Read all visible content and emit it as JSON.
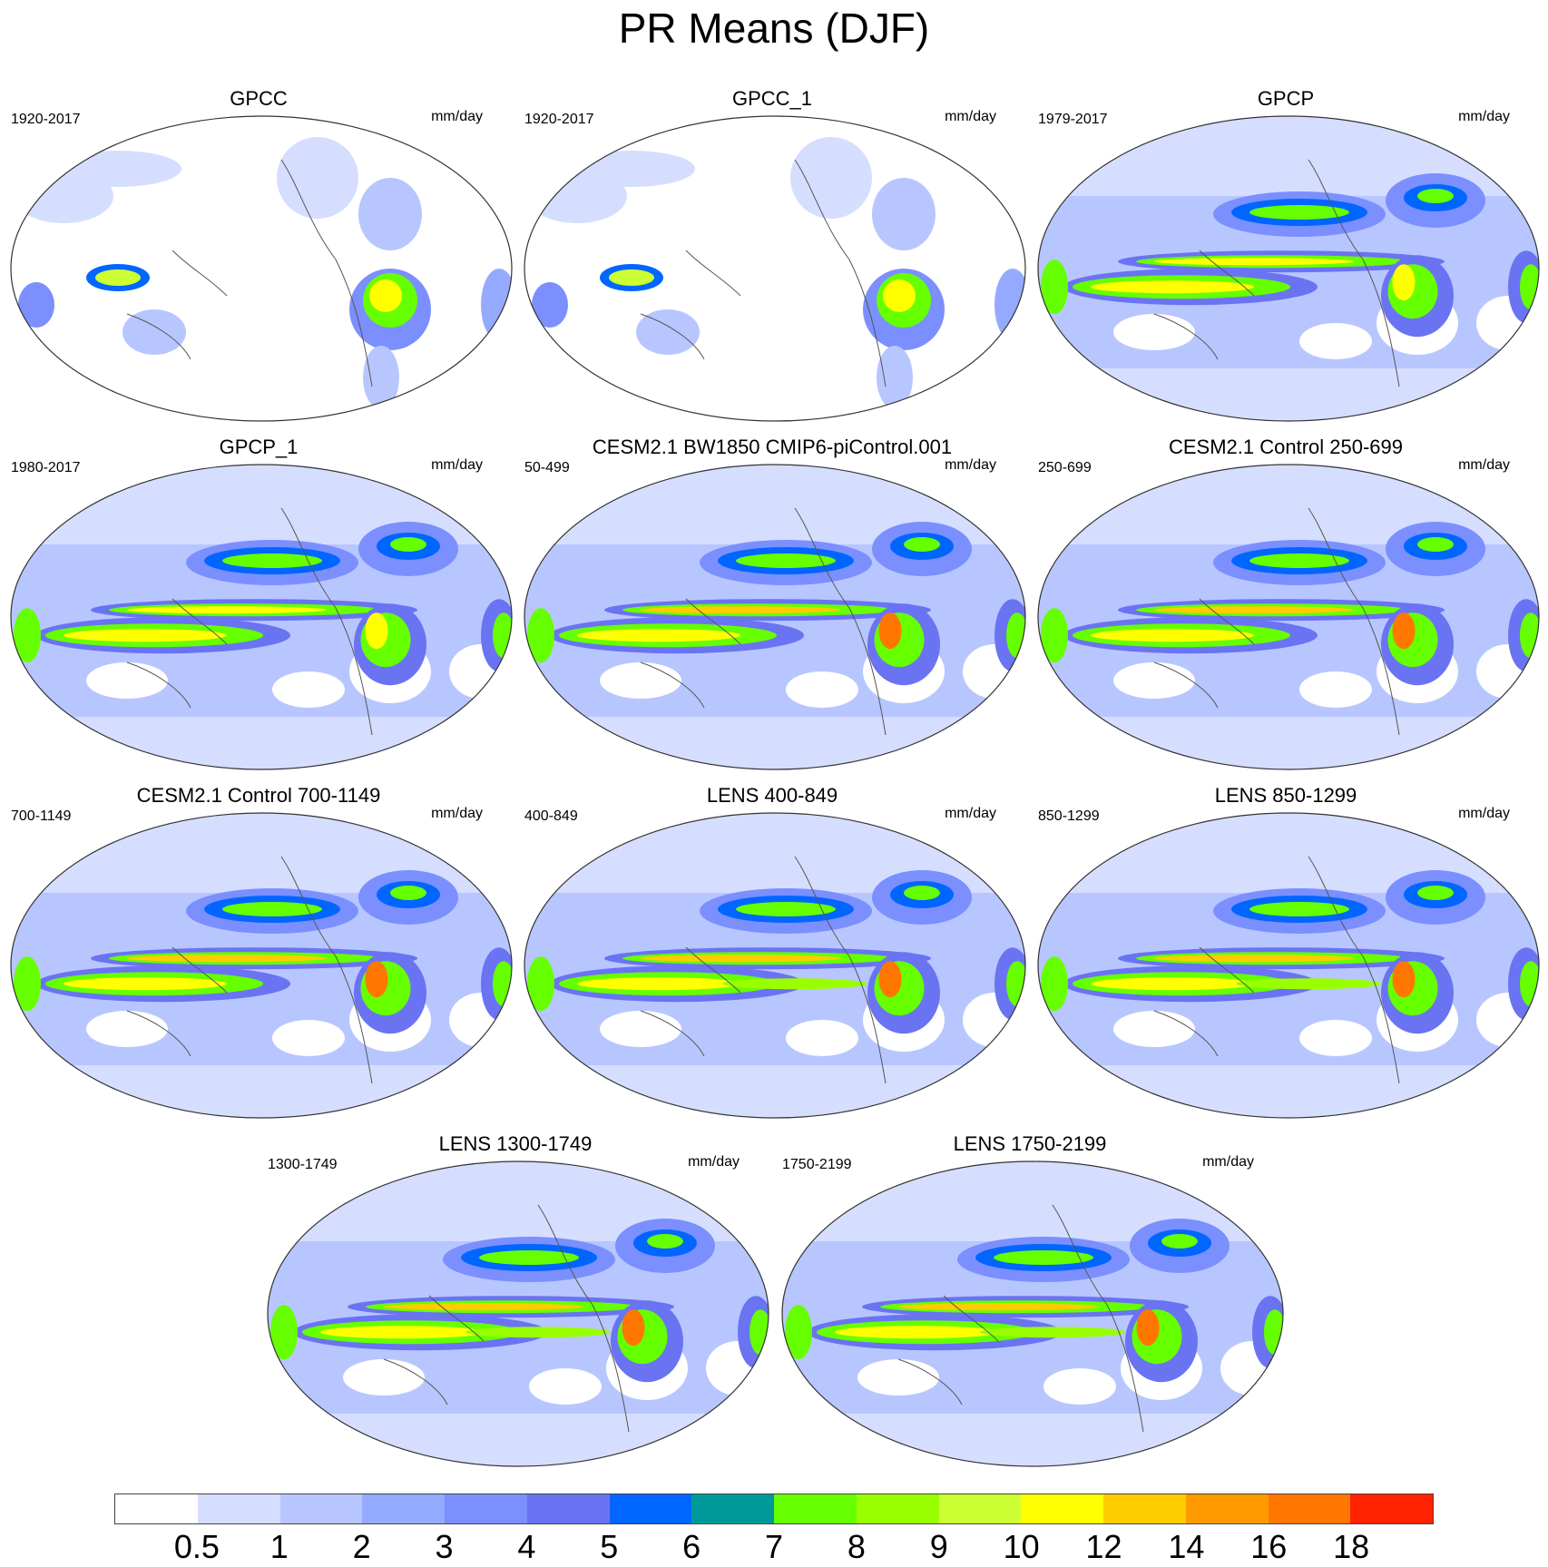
{
  "title": "PR Means (DJF)",
  "units": "mm/day",
  "panels": [
    {
      "title": "GPCC",
      "period": "1920-2017",
      "kind": "obs-land"
    },
    {
      "title": "GPCC_1",
      "period": "1920-2017",
      "kind": "obs-land"
    },
    {
      "title": "GPCP",
      "period": "1979-2017",
      "kind": "obs-global"
    },
    {
      "title": "GPCP_1",
      "period": "1980-2017",
      "kind": "obs-global"
    },
    {
      "title": "CESM2.1 BW1850 CMIP6-piControl.001",
      "period": "50-499",
      "kind": "model"
    },
    {
      "title": "CESM2.1 Control 250-699",
      "period": "250-699",
      "kind": "model"
    },
    {
      "title": "CESM2.1 Control 700-1149",
      "period": "700-1149",
      "kind": "model"
    },
    {
      "title": "LENS 400-849",
      "period": "400-849",
      "kind": "lens"
    },
    {
      "title": "LENS 850-1299",
      "period": "850-1299",
      "kind": "lens"
    },
    {
      "title": "LENS 1300-1749",
      "period": "1300-1749",
      "kind": "lens"
    },
    {
      "title": "LENS 1750-2199",
      "period": "1750-2199",
      "kind": "lens"
    }
  ],
  "colorbar": {
    "labels": [
      "0.5",
      "1",
      "2",
      "3",
      "4",
      "5",
      "6",
      "7",
      "8",
      "9",
      "10",
      "12",
      "14",
      "16",
      "18"
    ],
    "colors": [
      "#ffffff",
      "#d6deff",
      "#b8c6ff",
      "#94aaff",
      "#7b8fff",
      "#6a73f2",
      "#0066ff",
      "#009999",
      "#66ff00",
      "#99ff00",
      "#ccff33",
      "#ffff00",
      "#ffcc00",
      "#ff9900",
      "#ff7700",
      "#ff2200"
    ]
  }
}
